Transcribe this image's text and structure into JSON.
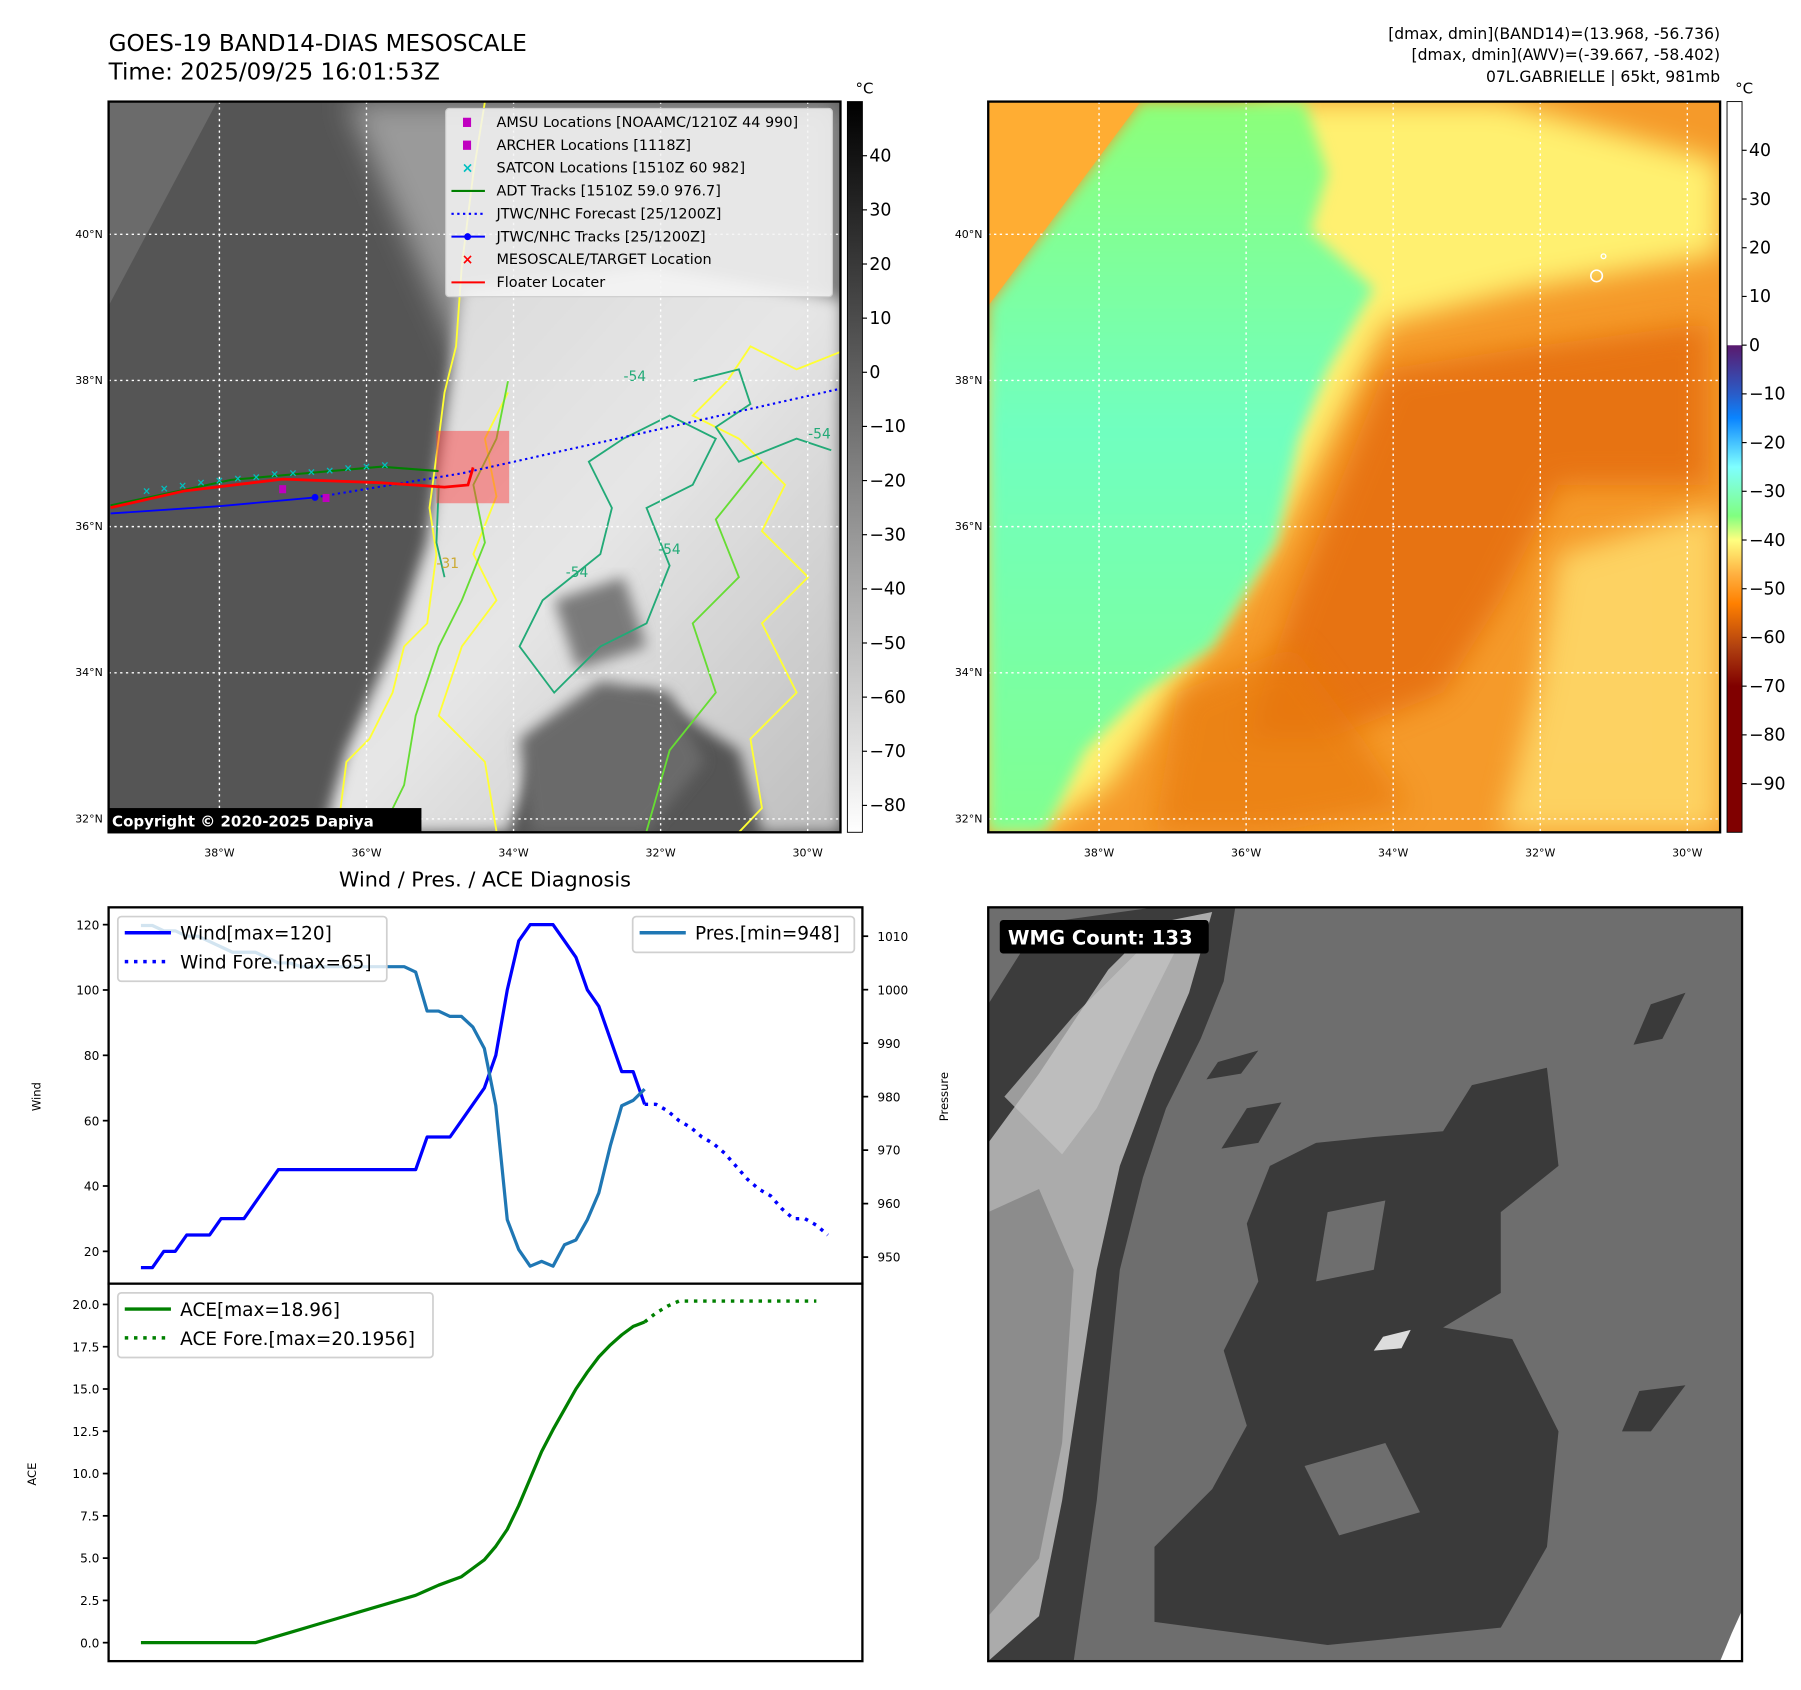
{
  "header": {
    "title": "GOES-19 BAND14-DIAS MESOSCALE",
    "time": "Time: 2025/09/25 16:01:53Z",
    "stats_band14": "[dmax, dmin](BAND14)=(13.968, -56.736)",
    "stats_awv": "[dmax, dmin](AWV)=(-39.667, -58.402)",
    "storm": "07L.GABRIELLE | 65kt, 981mb"
  },
  "maps": {
    "lon_ticks": [
      -38,
      -36,
      -34,
      -32,
      -30
    ],
    "lon_labels": [
      "38°W",
      "36°W",
      "34°W",
      "32°W",
      "30°W"
    ],
    "lat_ticks": [
      40,
      38,
      36,
      34,
      32
    ],
    "lat_labels": [
      "40°N",
      "38°N",
      "36°N",
      "34°N",
      "32°N"
    ],
    "copyright": "Copyright © 2020-2025 Dapiya",
    "contour_labels": [
      "-54",
      "-54",
      "-54",
      "-54",
      "-31"
    ],
    "legend": [
      {
        "label": "AMSU Locations [NOAAMC/1210Z 44 990]",
        "marker": "square",
        "color": "#c000c0"
      },
      {
        "label": "ARCHER Locations [1118Z]",
        "marker": "square",
        "color": "#c000c0"
      },
      {
        "label": "SATCON Locations [1510Z 60 982]",
        "marker": "x",
        "color": "#00c0c0"
      },
      {
        "label": "ADT Tracks [1510Z 59.0 976.7]",
        "marker": "line",
        "color": "#008000"
      },
      {
        "label": "JTWC/NHC Forecast [25/1200Z]",
        "marker": "dotted",
        "color": "#0000ff"
      },
      {
        "label": "JTWC/NHC Tracks [25/1200Z]",
        "marker": "line-dot",
        "color": "#0000ff"
      },
      {
        "label": "MESOSCALE/TARGET Location",
        "marker": "x",
        "color": "#ff0000"
      },
      {
        "label": "Floater Locater",
        "marker": "line",
        "color": "#ff0000"
      }
    ],
    "tracks": {
      "jtwc": [
        [
          -39.48,
          36.18
        ],
        [
          -38.0,
          36.28
        ],
        [
          -36.7,
          36.4
        ]
      ],
      "forecast": [
        [
          -36.7,
          36.4
        ],
        [
          -34.7,
          36.73
        ],
        [
          -32.03,
          37.33
        ],
        [
          -29.5,
          37.9
        ]
      ],
      "floater": [
        [
          -39.48,
          36.26
        ],
        [
          -38.47,
          36.49
        ],
        [
          -37.14,
          36.65
        ],
        [
          -35.8,
          36.6
        ],
        [
          -34.94,
          36.54
        ],
        [
          -34.62,
          36.57
        ],
        [
          -34.55,
          36.81
        ]
      ],
      "adt": [
        [
          -39.48,
          36.29
        ],
        [
          -37.84,
          36.64
        ],
        [
          -37.06,
          36.71
        ],
        [
          -35.8,
          36.82
        ],
        [
          -35.02,
          36.76
        ]
      ],
      "satcon": [
        [
          -38.99,
          36.49
        ],
        [
          -38.75,
          36.52
        ],
        [
          -38.5,
          36.56
        ],
        [
          -38.25,
          36.6
        ],
        [
          -38.0,
          36.63
        ],
        [
          -37.75,
          36.66
        ],
        [
          -37.5,
          36.68
        ],
        [
          -37.25,
          36.72
        ],
        [
          -37.0,
          36.73
        ],
        [
          -36.75,
          36.75
        ],
        [
          -36.5,
          36.77
        ],
        [
          -36.25,
          36.8
        ],
        [
          -36.0,
          36.82
        ],
        [
          -35.75,
          36.84
        ]
      ],
      "amsu_archer": [
        [
          -37.14,
          36.52
        ],
        [
          -36.55,
          36.4
        ]
      ],
      "mesoscale_box": [
        -35.05,
        37.31,
        -34.06,
        36.32
      ]
    },
    "colorbar_left": {
      "unit": "°C",
      "range": [
        -85,
        50
      ],
      "ticks": [
        40,
        30,
        20,
        10,
        0,
        -10,
        -20,
        -30,
        -40,
        -50,
        -60,
        -70,
        -80
      ],
      "labels": [
        "40",
        "30",
        "20",
        "10",
        "0",
        "−10",
        "−20",
        "−30",
        "−40",
        "−50",
        "−60",
        "−70",
        "−80"
      ]
    },
    "colorbar_right": {
      "unit": "°C",
      "range": [
        -100,
        50
      ],
      "ticks": [
        40,
        30,
        20,
        10,
        0,
        -10,
        -20,
        -30,
        -40,
        -50,
        -60,
        -70,
        -80,
        -90
      ],
      "labels": [
        "40",
        "30",
        "20",
        "10",
        "0",
        "−10",
        "−20",
        "−30",
        "−40",
        "−50",
        "−60",
        "−70",
        "−80",
        "−90"
      ]
    }
  },
  "wmg": {
    "label": "WMG Count: 133"
  },
  "chart_data": [
    {
      "type": "line",
      "title": "Wind / Pres. / ACE Diagnosis",
      "ylabel": "Wind",
      "ylabel_right": "Pressure",
      "ylim": [
        10.25,
        125
      ],
      "ylim_right": [
        945.1,
        1015.4
      ],
      "xlim": [
        -2.8,
        63.1
      ],
      "yticks": [
        20,
        40,
        60,
        80,
        100,
        120
      ],
      "yticks_right": [
        950,
        960,
        970,
        980,
        990,
        1000,
        1010
      ],
      "series": [
        {
          "name": "Wind[max=120]",
          "color": "#0000ff",
          "style": "solid",
          "x0": 0,
          "values": [
            15,
            15,
            20,
            20,
            25,
            25,
            25,
            30,
            30,
            30,
            35,
            40,
            45,
            45,
            45,
            45,
            45,
            45,
            45,
            45,
            45,
            45,
            45,
            45,
            45,
            55,
            55,
            55,
            60,
            65,
            70,
            80,
            100,
            115,
            120,
            120,
            120,
            115,
            110,
            100,
            95,
            85,
            75,
            75,
            65
          ]
        },
        {
          "name": "Wind Fore.[max=65]",
          "color": "#0000ff",
          "style": "dotted",
          "x0": 44,
          "values": [
            65,
            65,
            63,
            60,
            58,
            55,
            53,
            50,
            46,
            42,
            39,
            37,
            33,
            30,
            30,
            28,
            25
          ]
        },
        {
          "name": "Pres.[min=948]",
          "color": "#1f77b4",
          "style": "solid",
          "axis": "right",
          "x0": 0,
          "values": [
            1012,
            1012,
            1011,
            1011,
            1010,
            1010,
            1009,
            1008,
            1007,
            1007,
            1007,
            1006,
            1005,
            1005,
            1004.3,
            1004.3,
            1004.3,
            1004.3,
            1004.3,
            1004.3,
            1004.3,
            1004.3,
            1004.3,
            1004.3,
            1003.3,
            996,
            996,
            995,
            995,
            993,
            989,
            978.3,
            957,
            951.4,
            948.3,
            949.2,
            948.3,
            952.3,
            953.2,
            957,
            962,
            970.8,
            978.3,
            979.3,
            981.4
          ]
        }
      ]
    },
    {
      "type": "line",
      "ylabel": "ACE",
      "ylim": [
        -1.06,
        21.24
      ],
      "xlim": [
        -2.8,
        63.1
      ],
      "yticks": [
        0,
        2.5,
        5,
        7.5,
        10,
        12.5,
        15,
        17.5,
        20
      ],
      "ytick_labels": [
        "0.0",
        "2.5",
        "5.0",
        "7.5",
        "10.0",
        "12.5",
        "15.0",
        "17.5",
        "20.0"
      ],
      "series": [
        {
          "name": "ACE[max=18.96]",
          "color": "#008000",
          "style": "solid",
          "x0": 0,
          "values": [
            0,
            0,
            0,
            0,
            0,
            0,
            0,
            0,
            0,
            0,
            0,
            0.2,
            0.4,
            0.6,
            0.8,
            1.0,
            1.2,
            1.4,
            1.6,
            1.8,
            2.0,
            2.2,
            2.4,
            2.6,
            2.8,
            3.1,
            3.4,
            3.65,
            3.9,
            4.4,
            4.9,
            5.7,
            6.7,
            8.1,
            9.7,
            11.3,
            12.6,
            13.8,
            15.0,
            16.0,
            16.9,
            17.6,
            18.2,
            18.7,
            18.96
          ]
        },
        {
          "name": "ACE Fore.[max=20.1956]",
          "color": "#008000",
          "style": "dotted",
          "x0": 44,
          "values": [
            18.96,
            19.5,
            19.9,
            20.2,
            20.2,
            20.2,
            20.2,
            20.2,
            20.2,
            20.2,
            20.2,
            20.2,
            20.2,
            20.2,
            20.2,
            20.2
          ]
        }
      ]
    }
  ]
}
